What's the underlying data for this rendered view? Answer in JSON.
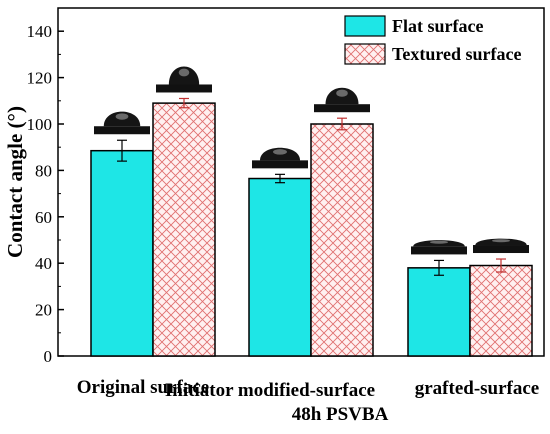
{
  "chart_data": {
    "type": "bar",
    "categories": [
      "Original surface",
      "Initiator modified-surface",
      "grafted-surface"
    ],
    "category_labels": [
      "Original surface",
      "Initiator modified-surface",
      "48h PSVBA  grafted-surface"
    ],
    "ylabel": "Contact angle (°)",
    "xlabel": "",
    "ylim": [
      0,
      150
    ],
    "yticks": [
      0,
      20,
      40,
      60,
      80,
      100,
      120,
      140
    ],
    "legend_position": "top-right",
    "series": [
      {
        "name": "Flat surface",
        "values": [
          88.5,
          76.5,
          38
        ],
        "errors": [
          4.5,
          1.8,
          3.2
        ],
        "color": "#1ee6e6",
        "pattern": "solid"
      },
      {
        "name": "Textured surface",
        "values": [
          109,
          100,
          39
        ],
        "errors": [
          2.0,
          2.5,
          2.8
        ],
        "color": "#ffe6e6",
        "pattern": "crosshatch",
        "hatch_color": "#e07070"
      }
    ],
    "droplet_icons": "water droplet photos shown above each bar"
  }
}
